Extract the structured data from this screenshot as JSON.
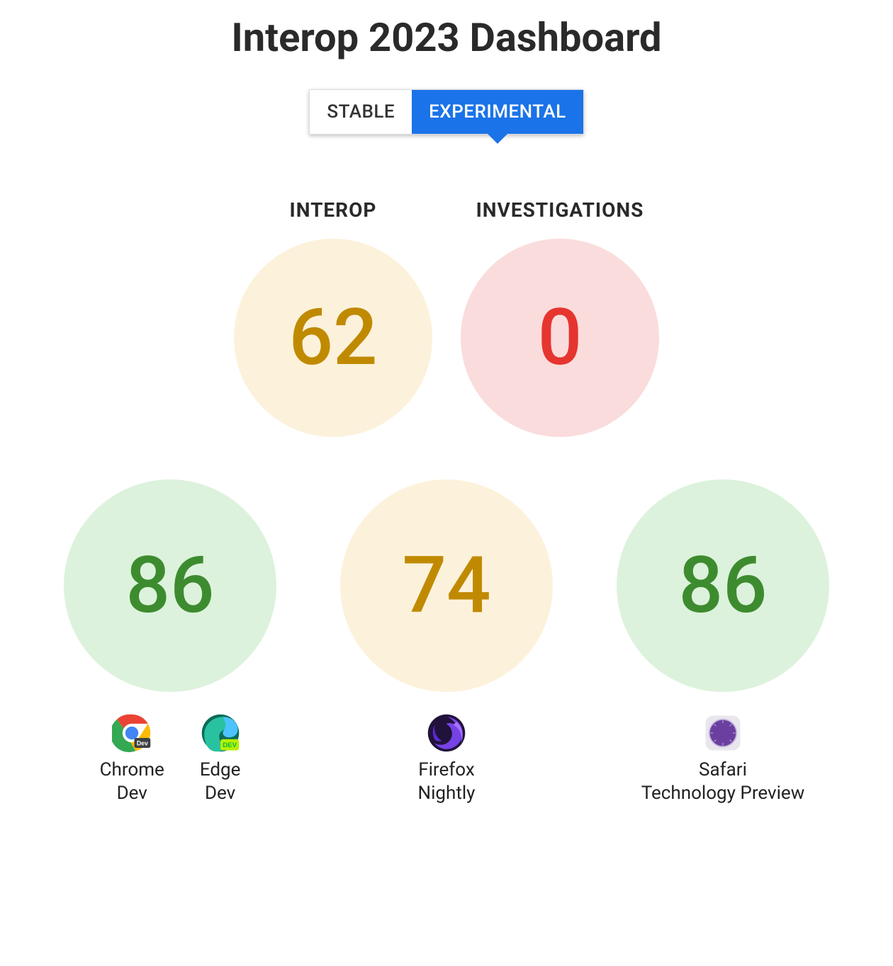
{
  "title": "Interop 2023 Dashboard",
  "tabs": {
    "stable": {
      "label": "STABLE",
      "active": false
    },
    "experimental": {
      "label": "EXPERIMENTAL",
      "active": true
    }
  },
  "colors": {
    "tab_active_bg": "#1a73e8",
    "green_bg": "#dcf2dc",
    "green_text": "#3d8b2f",
    "amber_bg": "#fcf2db",
    "amber_text": "#c08a00",
    "red_bg": "#fadcdc",
    "red_text": "#e5352e"
  },
  "top_metrics": {
    "interop": {
      "label": "INTEROP",
      "value": "62",
      "palette": "amber"
    },
    "investigations": {
      "label": "INVESTIGATIONS",
      "value": "0",
      "palette": "red"
    }
  },
  "browsers": [
    {
      "id": "chrome-edge",
      "value": "86",
      "palette": "green",
      "variants": [
        {
          "name": "Chrome\nDev",
          "icon": "chrome-dev-icon"
        },
        {
          "name": "Edge\nDev",
          "icon": "edge-dev-icon"
        }
      ]
    },
    {
      "id": "firefox",
      "value": "74",
      "palette": "amber",
      "variants": [
        {
          "name": "Firefox\nNightly",
          "icon": "firefox-nightly-icon"
        }
      ]
    },
    {
      "id": "safari",
      "value": "86",
      "palette": "green",
      "variants": [
        {
          "name": "Safari\nTechnology Preview",
          "icon": "safari-tp-icon"
        }
      ]
    }
  ]
}
